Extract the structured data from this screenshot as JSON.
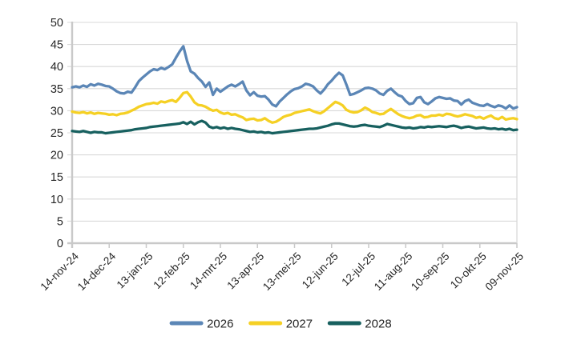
{
  "chart_data": {
    "type": "line",
    "title": "",
    "xlabel": "",
    "ylabel": "",
    "grid": true,
    "legend_position": "bottom",
    "x_axis": {
      "tick_labels": [
        "14-nov-24",
        "14-dec-24",
        "13-jan-25",
        "12-feb-25",
        "14-mrt-25",
        "13-apr-25",
        "13-mei-25",
        "12-jun-25",
        "12-jul-25",
        "11-aug-25",
        "10-sep-25",
        "10-okt-25",
        "09-nov-25"
      ],
      "tick_interval_days": 30,
      "note": "daily price series sampled every 3 days between first and last tick"
    },
    "y_axis": {
      "min": 0,
      "max": 50,
      "step": 5,
      "tick_labels": [
        "0",
        "5",
        "10",
        "15",
        "20",
        "25",
        "30",
        "35",
        "40",
        "45",
        "50"
      ]
    },
    "series": [
      {
        "name": "2026",
        "color": "#5B86B6",
        "values": [
          35.3,
          35.5,
          35.3,
          35.7,
          35.4,
          36.0,
          35.7,
          36.1,
          35.9,
          35.6,
          35.5,
          35.0,
          34.4,
          34.0,
          33.9,
          34.3,
          34.1,
          35.3,
          36.7,
          37.5,
          38.2,
          38.9,
          39.4,
          39.2,
          39.7,
          39.4,
          39.9,
          40.5,
          42.0,
          43.4,
          44.6,
          41.3,
          38.9,
          38.4,
          37.4,
          36.6,
          35.4,
          36.4,
          33.6,
          35.0,
          34.3,
          34.9,
          35.5,
          35.9,
          35.5,
          36.0,
          36.6,
          34.6,
          33.5,
          34.2,
          33.4,
          33.2,
          33.3,
          32.5,
          31.4,
          31.0,
          32.1,
          32.9,
          33.7,
          34.4,
          34.9,
          35.1,
          35.5,
          36.1,
          35.9,
          35.5,
          34.6,
          33.9,
          34.8,
          36.0,
          36.8,
          37.8,
          38.6,
          38.0,
          35.9,
          33.6,
          33.8,
          34.2,
          34.6,
          35.1,
          35.2,
          35.0,
          34.6,
          33.9,
          33.6,
          34.5,
          35.0,
          34.2,
          33.5,
          33.2,
          32.2,
          31.5,
          31.7,
          32.9,
          33.1,
          31.9,
          31.5,
          32.1,
          32.8,
          33.1,
          32.9,
          32.7,
          32.8,
          32.3,
          32.2,
          31.4,
          32.2,
          32.5,
          31.8,
          31.5,
          31.2,
          31.1,
          31.5,
          31.1,
          30.8,
          31.2,
          31.0,
          30.5,
          31.2,
          30.5,
          30.8
        ]
      },
      {
        "name": "2027",
        "color": "#F5D024",
        "values": [
          29.8,
          29.6,
          29.5,
          29.7,
          29.4,
          29.6,
          29.3,
          29.5,
          29.4,
          29.3,
          29.1,
          29.2,
          29.0,
          29.3,
          29.4,
          29.6,
          30.0,
          30.4,
          30.9,
          31.2,
          31.5,
          31.6,
          31.8,
          31.6,
          32.1,
          31.9,
          32.2,
          32.4,
          32.0,
          32.9,
          34.0,
          34.2,
          33.2,
          31.9,
          31.3,
          31.2,
          30.9,
          30.4,
          30.0,
          30.2,
          29.6,
          29.3,
          29.5,
          29.1,
          29.2,
          28.8,
          28.5,
          27.9,
          28.1,
          28.2,
          27.8,
          27.9,
          28.3,
          27.7,
          27.3,
          27.5,
          28.0,
          28.6,
          28.9,
          29.1,
          29.5,
          29.7,
          29.9,
          30.1,
          30.3,
          29.9,
          29.6,
          29.4,
          29.9,
          30.6,
          31.3,
          32.0,
          31.7,
          31.2,
          30.2,
          29.8,
          29.6,
          29.7,
          30.1,
          30.7,
          30.3,
          29.7,
          29.5,
          29.2,
          29.3,
          29.9,
          30.4,
          29.8,
          29.2,
          28.8,
          28.5,
          28.3,
          28.5,
          28.9,
          29.0,
          28.5,
          28.6,
          28.9,
          28.9,
          29.1,
          28.9,
          29.3,
          29.2,
          28.9,
          28.7,
          28.9,
          29.2,
          29.0,
          28.8,
          28.4,
          28.6,
          28.2,
          28.6,
          28.9,
          28.3,
          28.1,
          28.6,
          28.0,
          28.2,
          28.3,
          28.1
        ]
      },
      {
        "name": "2028",
        "color": "#17605F",
        "values": [
          25.4,
          25.3,
          25.2,
          25.4,
          25.2,
          25.0,
          25.2,
          25.1,
          25.1,
          24.9,
          25.0,
          25.1,
          25.2,
          25.3,
          25.4,
          25.5,
          25.6,
          25.8,
          25.9,
          26.0,
          26.1,
          26.3,
          26.4,
          26.5,
          26.6,
          26.7,
          26.8,
          26.9,
          27.0,
          27.1,
          27.4,
          27.0,
          27.5,
          26.9,
          27.4,
          27.7,
          27.3,
          26.4,
          26.1,
          26.3,
          26.0,
          26.2,
          25.9,
          26.1,
          25.9,
          25.8,
          25.6,
          25.4,
          25.2,
          25.3,
          25.1,
          25.2,
          25.0,
          25.1,
          24.9,
          25.0,
          25.1,
          25.2,
          25.3,
          25.4,
          25.5,
          25.6,
          25.7,
          25.8,
          25.9,
          25.9,
          26.0,
          26.2,
          26.4,
          26.6,
          26.9,
          27.1,
          27.1,
          26.9,
          26.7,
          26.5,
          26.4,
          26.5,
          26.7,
          26.8,
          26.6,
          26.5,
          26.4,
          26.3,
          26.6,
          27.0,
          26.8,
          26.6,
          26.4,
          26.2,
          26.1,
          26.2,
          26.0,
          26.1,
          26.3,
          26.2,
          26.4,
          26.3,
          26.4,
          26.5,
          26.4,
          26.3,
          26.5,
          26.6,
          26.4,
          26.1,
          26.3,
          26.4,
          26.2,
          26.0,
          26.1,
          26.2,
          26.0,
          25.9,
          26.0,
          25.8,
          25.9,
          25.7,
          25.9,
          25.6,
          25.7
        ]
      }
    ]
  },
  "colors": {
    "background": "#FFFFFF",
    "gridline": "#D9D9D9",
    "axis": "#C9C9C9",
    "text": "#262626"
  }
}
